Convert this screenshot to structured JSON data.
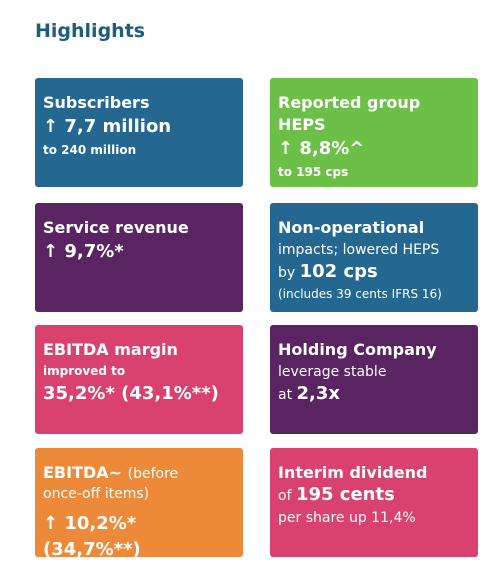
{
  "title": "Highlights",
  "cards": [
    {
      "texts": [
        "Subscribers",
        "↑ 7,7 million",
        "to 240 million"
      ]
    },
    {
      "texts": [
        "Reported group HEPS",
        "↑ 8,8%^",
        "to 195 cps"
      ]
    },
    {
      "texts": [
        "Service revenue",
        "↑ 9,7%*"
      ]
    },
    {
      "texts": [
        "Non-operational",
        "impacts; lowered HEPS",
        "by",
        "102 cps",
        "(includes 39 cents IFRS 16)"
      ]
    },
    {
      "texts": [
        "EBITDA margin",
        "improved to",
        "35,2%* (43,1%**)"
      ]
    },
    {
      "texts": [
        "Holding Company",
        "leverage stable",
        "at",
        "2,3x"
      ]
    },
    {
      "texts": [
        "EBITDA~",
        "(before",
        "once-off items)",
        "↑ 10,2%* (34,7%**)"
      ]
    },
    {
      "texts": [
        "Interim dividend",
        "of",
        "195 cents",
        "per share up 11,4%"
      ]
    }
  ]
}
